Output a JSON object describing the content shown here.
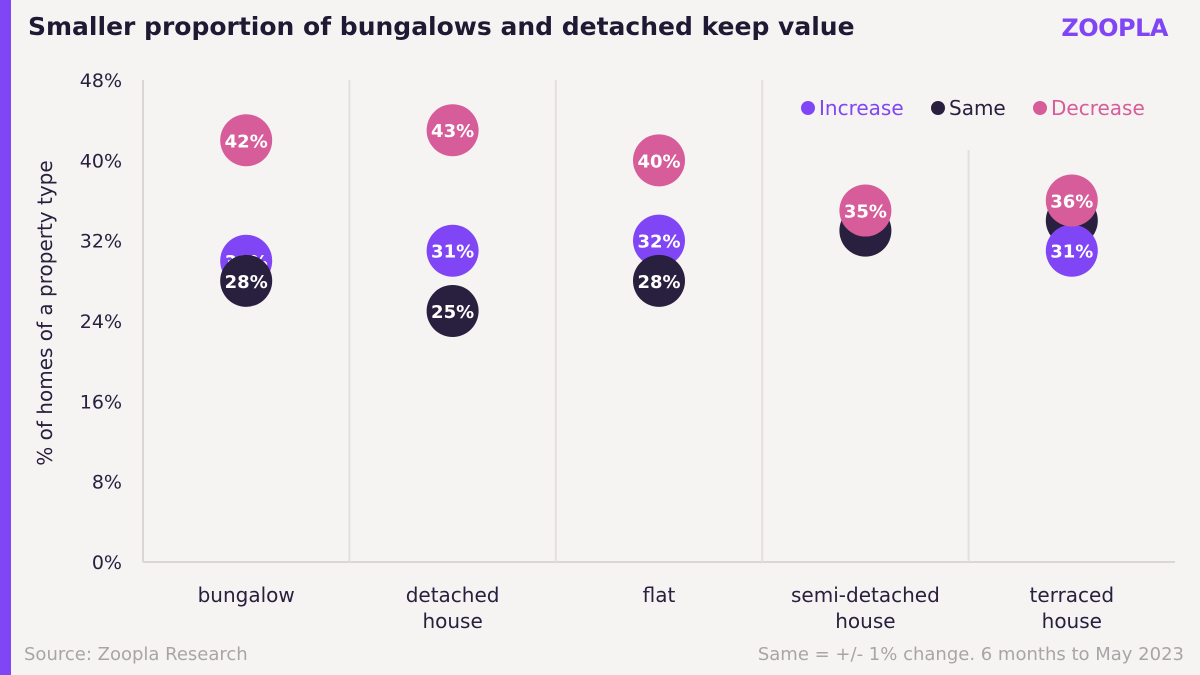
{
  "header": {
    "title": "Smaller proportion of bungalows and detached keep value",
    "logo": "ZOOPLA"
  },
  "footer": {
    "source": "Source: Zoopla Research",
    "note": "Same = +/- 1% change. 6 months to May 2023"
  },
  "colors": {
    "increase": "#8046f6",
    "same": "#28203e",
    "decrease": "#d65c9a",
    "accent": "#8046f6"
  },
  "chart_data": {
    "type": "scatter",
    "title": "Smaller proportion of bungalows and detached keep value",
    "xlabel": "",
    "ylabel": "% of homes of a property type",
    "ylim": [
      0,
      48
    ],
    "yticks": [
      0,
      8,
      16,
      24,
      32,
      40,
      48
    ],
    "ytick_labels": [
      "0%",
      "8%",
      "16%",
      "24%",
      "32%",
      "40%",
      "48%"
    ],
    "categories": [
      "bungalow",
      "detached house",
      "flat",
      "semi-detached house",
      "terraced house"
    ],
    "category_label_lines": [
      [
        "bungalow"
      ],
      [
        "detached",
        "house"
      ],
      [
        "flat"
      ],
      [
        "semi-detached",
        "house"
      ],
      [
        "terraced",
        "house"
      ]
    ],
    "series": [
      {
        "name": "Increase",
        "values": [
          30,
          31,
          32,
          null,
          31
        ],
        "labels": [
          "30%",
          "31%",
          "32%",
          "",
          "31%"
        ]
      },
      {
        "name": "Same",
        "values": [
          28,
          25,
          28,
          33,
          34
        ],
        "labels": [
          "28%",
          "25%",
          "28%",
          "",
          ""
        ]
      },
      {
        "name": "Decrease",
        "values": [
          42,
          43,
          40,
          35,
          36
        ],
        "labels": [
          "42%",
          "43%",
          "40%",
          "35%",
          "36%"
        ]
      }
    ],
    "legend_position": "top-right",
    "grid": false
  }
}
